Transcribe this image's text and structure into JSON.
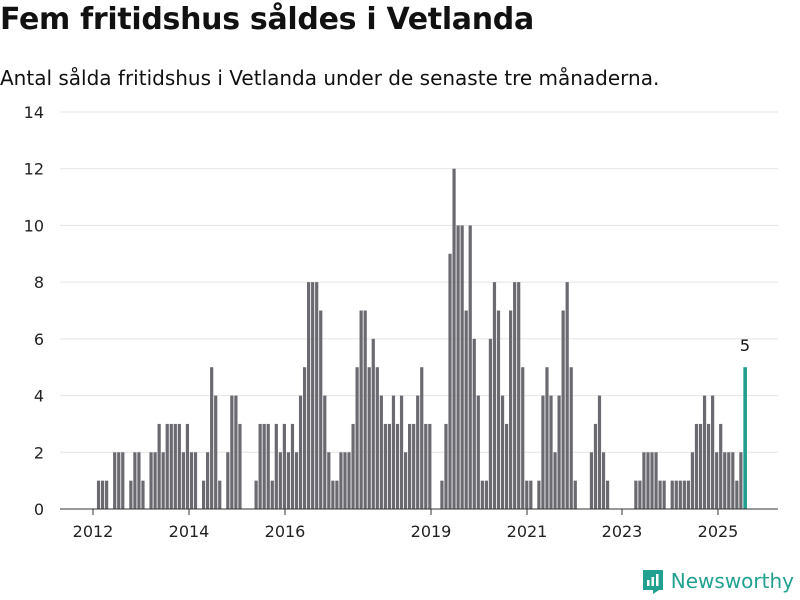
{
  "header": {
    "title": "Fem fritidshus såldes i Vetlanda",
    "subtitle": "Antal sålda fritidshus i Vetlanda under de senaste tre månaderna."
  },
  "brand": {
    "name": "Newsworthy",
    "color": "#21a190"
  },
  "colors": {
    "bar": "#6b6a70",
    "highlight": "#1f9e8f",
    "grid": "#e4e4e4",
    "axis": "#333333"
  },
  "chart_data": {
    "type": "bar",
    "y_ticks": [
      0,
      2,
      4,
      6,
      8,
      10,
      12,
      14
    ],
    "ylim": [
      0,
      14
    ],
    "x_tick_labels": [
      "2012",
      "2014",
      "2016",
      "2019",
      "2021",
      "2023",
      "2025"
    ],
    "highlight_label": "5",
    "values": [
      0,
      1,
      1,
      1,
      0,
      2,
      2,
      2,
      0,
      1,
      2,
      2,
      1,
      0,
      2,
      2,
      3,
      2,
      3,
      3,
      3,
      3,
      2,
      3,
      2,
      2,
      0,
      1,
      2,
      5,
      4,
      1,
      0,
      2,
      4,
      4,
      3,
      0,
      0,
      0,
      1,
      3,
      3,
      3,
      1,
      3,
      2,
      3,
      2,
      3,
      2,
      4,
      5,
      8,
      8,
      8,
      7,
      4,
      2,
      1,
      1,
      2,
      2,
      2,
      3,
      5,
      7,
      7,
      5,
      6,
      5,
      4,
      3,
      3,
      4,
      3,
      4,
      2,
      3,
      3,
      4,
      5,
      3,
      3,
      0,
      0,
      1,
      3,
      9,
      12,
      10,
      10,
      7,
      10,
      6,
      4,
      1,
      1,
      6,
      8,
      7,
      4,
      3,
      7,
      8,
      8,
      5,
      1,
      1,
      0,
      1,
      4,
      5,
      4,
      2,
      4,
      7,
      8,
      5,
      1,
      0,
      0,
      0,
      2,
      3,
      4,
      2,
      1,
      0,
      0,
      0,
      0,
      0,
      0,
      1,
      1,
      2,
      2,
      2,
      2,
      1,
      1,
      0,
      1,
      1,
      1,
      1,
      1,
      2,
      3,
      3,
      4,
      3,
      4,
      2,
      3,
      2,
      2,
      2,
      1,
      2,
      5
    ]
  }
}
